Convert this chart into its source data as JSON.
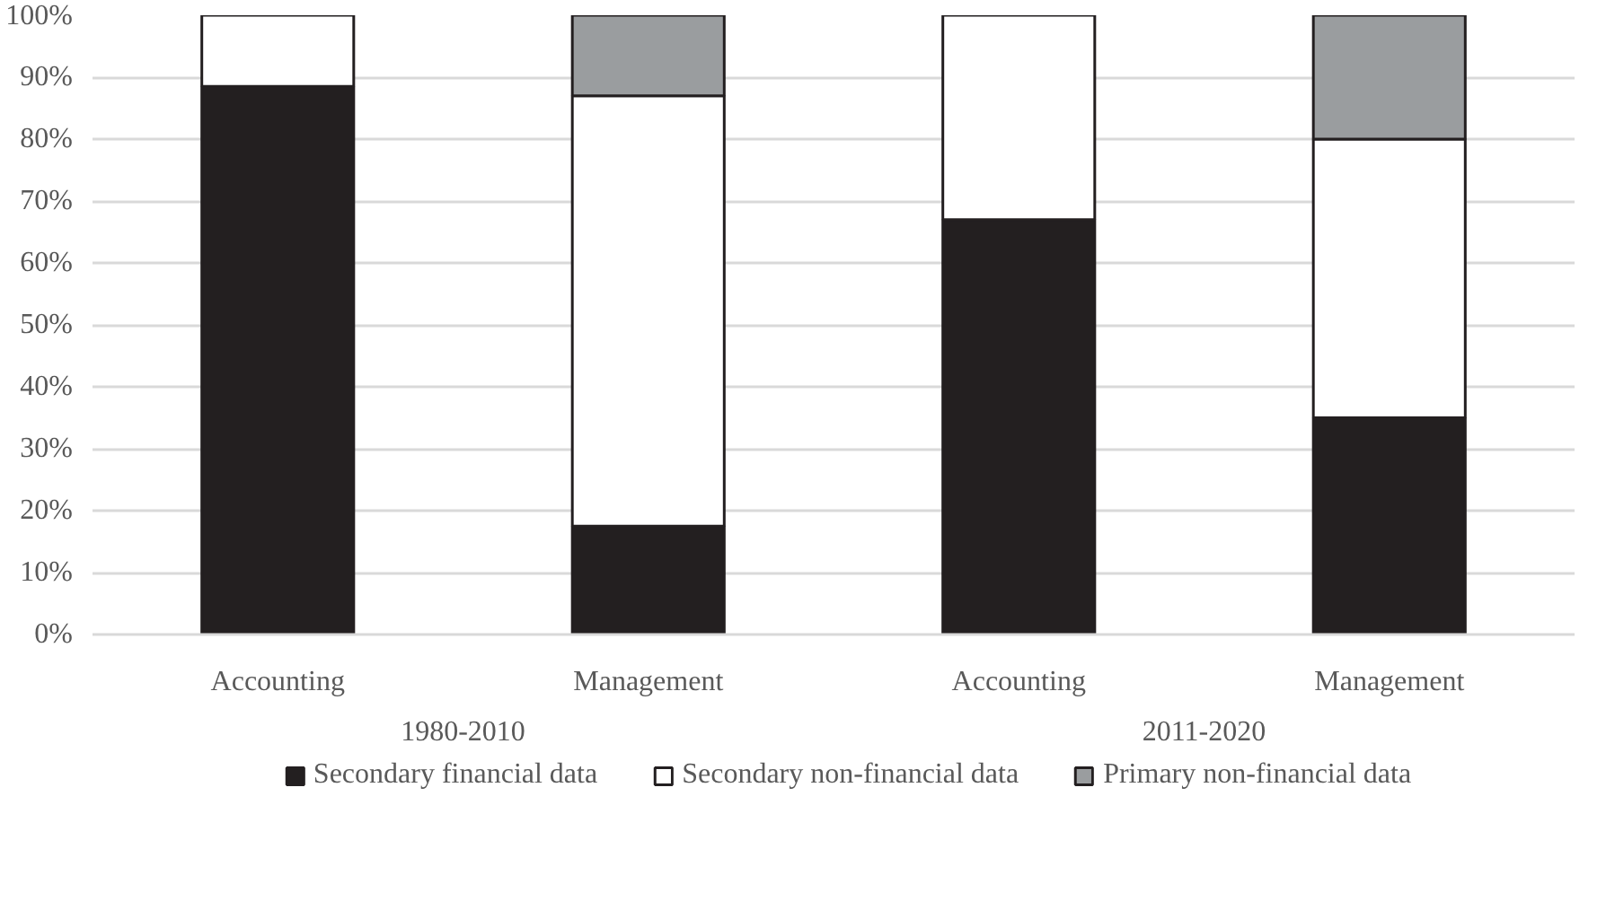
{
  "chart_data": {
    "type": "bar",
    "stacked": true,
    "categories": [
      "Accounting",
      "Management",
      "Accounting",
      "Management"
    ],
    "annotations": [
      "1980-2010",
      "2011-2020"
    ],
    "series": [
      {
        "name": "Secondary financial data",
        "color": "#231f20",
        "values": [
          88.5,
          17.5,
          67,
          35
        ]
      },
      {
        "name": "Secondary non-financial data",
        "color": "#ffffff",
        "values": [
          11.5,
          69.5,
          33,
          45
        ]
      },
      {
        "name": "Primary non-financial data",
        "color": "#9a9d9f",
        "values": [
          null,
          13,
          null,
          20
        ]
      }
    ],
    "ylim": [
      0,
      100
    ],
    "yticks": [
      {
        "value": 0,
        "label": "0%"
      },
      {
        "value": 10,
        "label": "10%"
      },
      {
        "value": 20,
        "label": "20%"
      },
      {
        "value": 30,
        "label": "30%"
      },
      {
        "value": 40,
        "label": "40%"
      },
      {
        "value": 50,
        "label": "50%"
      },
      {
        "value": 60,
        "label": "60%"
      },
      {
        "value": 70,
        "label": "70%"
      },
      {
        "value": 80,
        "label": "80%"
      },
      {
        "value": 90,
        "label": "90%"
      },
      {
        "value": 100,
        "label": "100%"
      }
    ],
    "grid": "y",
    "legend": "bottom"
  }
}
